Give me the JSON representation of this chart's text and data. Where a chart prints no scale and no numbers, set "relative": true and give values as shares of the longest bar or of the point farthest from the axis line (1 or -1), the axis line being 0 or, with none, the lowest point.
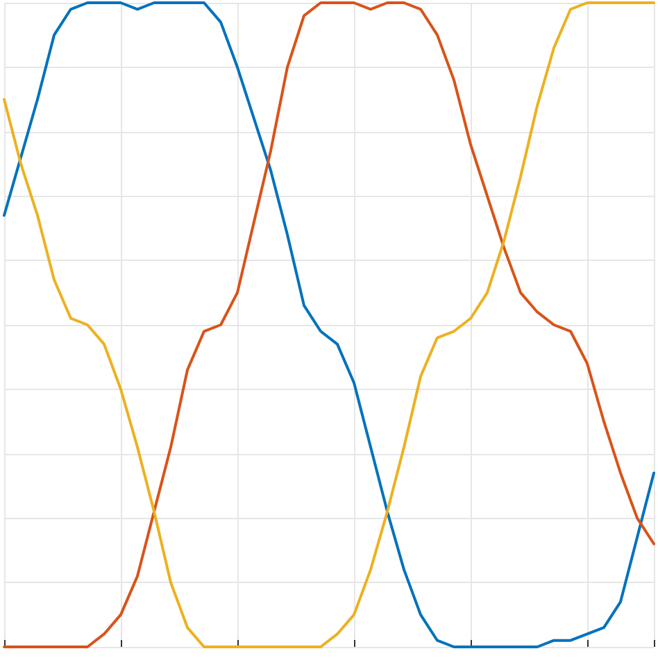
{
  "chart_data": {
    "type": "line",
    "relative": true,
    "grid": true,
    "marker": "none",
    "line_style": "solid",
    "categories": [
      null,
      null,
      null,
      null,
      null,
      null,
      null,
      null,
      null,
      null,
      null,
      null,
      null,
      null,
      null,
      null,
      null,
      null,
      null,
      null,
      null,
      null,
      null,
      null,
      null,
      null,
      null,
      null,
      null,
      null,
      null,
      null,
      null,
      null,
      null,
      null,
      null,
      null,
      null,
      null
    ],
    "series": [
      {
        "color": "#0072bd",
        "values": [
          0.67,
          0.76,
          0.85,
          0.95,
          0.99,
          1,
          1,
          1,
          0.99,
          1,
          1,
          1,
          1,
          0.97,
          0.9,
          0.82,
          0.74,
          0.64,
          0.53,
          0.49,
          0.47,
          0.41,
          0.31,
          0.21,
          0.12,
          0.05,
          0.01,
          0,
          0,
          0,
          0,
          0,
          0,
          0.01,
          0.01,
          0.02,
          0.03,
          0.07,
          0.17,
          0.27
        ]
      },
      {
        "color": "#d95319",
        "values": [
          0,
          0,
          0,
          0,
          0,
          0,
          0.02,
          0.05,
          0.11,
          0.21,
          0.31,
          0.43,
          0.49,
          0.5,
          0.55,
          0.66,
          0.77,
          0.9,
          0.98,
          1,
          1,
          1,
          0.99,
          1,
          1,
          0.99,
          0.95,
          0.88,
          0.78,
          0.7,
          0.62,
          0.55,
          0.52,
          0.5,
          0.49,
          0.44,
          0.35,
          0.27,
          0.2,
          0.16
        ]
      },
      {
        "color": "#edb120",
        "values": [
          0.85,
          0.75,
          0.67,
          0.57,
          0.51,
          0.5,
          0.47,
          0.4,
          0.31,
          0.21,
          0.1,
          0.03,
          0,
          0,
          0,
          0,
          0,
          0,
          0,
          0,
          0.02,
          0.05,
          0.12,
          0.21,
          0.31,
          0.42,
          0.48,
          0.49,
          0.51,
          0.55,
          0.63,
          0.73,
          0.84,
          0.93,
          0.99,
          1,
          1,
          1,
          1,
          1
        ]
      }
    ]
  }
}
